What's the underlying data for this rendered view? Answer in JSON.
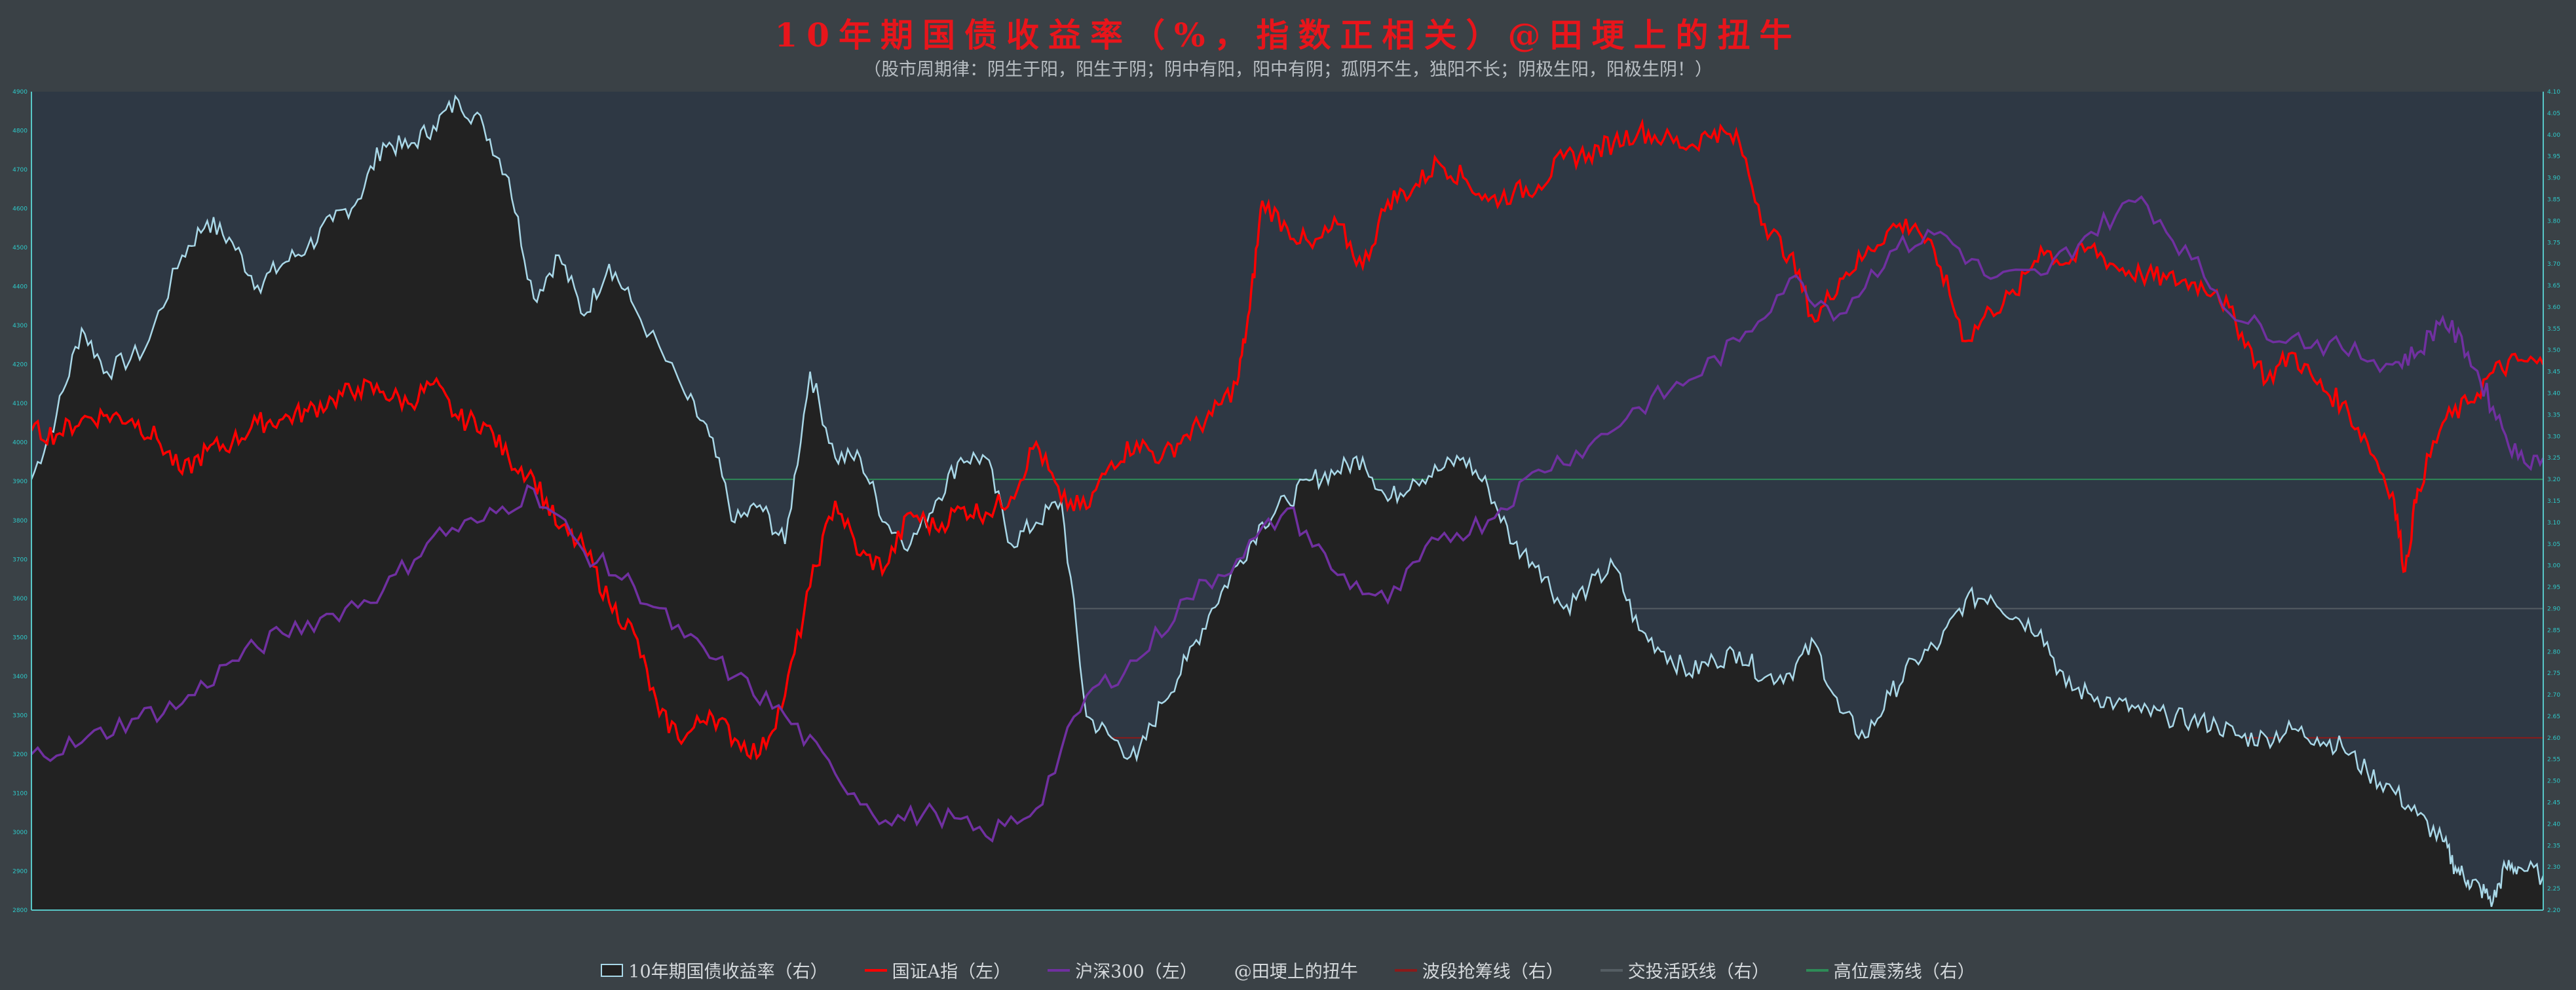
{
  "title": "10年期国债收益率（%，指数正相关）@田埂上的扭牛",
  "subtitle": "（股市周期律：阴生于阳，阳生于阴；阴中有阳，阳中有阴；孤阴不生，独阳不长；阴极生阳，阳极生阴！）",
  "colors": {
    "background": "#3a4146",
    "plot_background": "#2e3844",
    "area_fill": "#222222",
    "bond_line": "#a9d8e8",
    "index_a": "#ff0000",
    "hs300": "#7030a0",
    "title": "#e8151b",
    "tick_text": "#2ec9c9",
    "band_line": "#8b1a1a",
    "active_line": "#555d63",
    "high_line": "#2e8b57"
  },
  "legend": [
    {
      "label": "10年期国债收益率（右）",
      "style": "box",
      "color": "#a9d8e8"
    },
    {
      "label": "国证A指（左）",
      "style": "line",
      "color": "#ff0000"
    },
    {
      "label": "沪深300（左）",
      "style": "line",
      "color": "#7030a0"
    },
    {
      "label": "@田埂上的扭牛",
      "style": "none",
      "color": ""
    },
    {
      "label": "波段抢筹线（右）",
      "style": "line",
      "color": "#8b1a1a"
    },
    {
      "label": "交投活跃线（右）",
      "style": "line",
      "color": "#555d63"
    },
    {
      "label": "高位震荡线（右）",
      "style": "line",
      "color": "#2e8b57"
    }
  ],
  "chart_data": {
    "type": "line",
    "title": "10年期国债收益率（%，指数正相关）@田埂上的扭牛",
    "subtitle": "（股市周期律：阴生于阳，阳生于阴；阴中有阳，阳中有阴；孤阴不生，独阳不长；阴极生阳，阳极生阴！）",
    "x_range": [
      0,
      1
    ],
    "left_axis": {
      "ylim": [
        2800,
        4900
      ]
    },
    "right_axis": {
      "ylim": [
        2.2,
        4.1
      ]
    },
    "reference_lines": [
      {
        "name": "波段抢筹线（右）",
        "axis": "right",
        "value": 2.6
      },
      {
        "name": "交投活跃线（右）",
        "axis": "right",
        "value": 2.9
      },
      {
        "name": "高位震荡线（右）",
        "axis": "right",
        "value": 3.2
      }
    ],
    "series": [
      {
        "name": "10年期国债收益率（右）",
        "axis": "right",
        "style": "area",
        "points": [
          [
            0,
            3.2
          ],
          [
            0.01,
            3.35
          ],
          [
            0.02,
            3.55
          ],
          [
            0.03,
            3.45
          ],
          [
            0.045,
            3.5
          ],
          [
            0.06,
            3.72
          ],
          [
            0.07,
            3.8
          ],
          [
            0.08,
            3.75
          ],
          [
            0.09,
            3.65
          ],
          [
            0.1,
            3.7
          ],
          [
            0.11,
            3.74
          ],
          [
            0.12,
            3.8
          ],
          [
            0.13,
            3.85
          ],
          [
            0.14,
            3.98
          ],
          [
            0.15,
            3.97
          ],
          [
            0.16,
            4.02
          ],
          [
            0.17,
            4.08
          ],
          [
            0.18,
            4.02
          ],
          [
            0.19,
            3.9
          ],
          [
            0.2,
            3.62
          ],
          [
            0.21,
            3.72
          ],
          [
            0.22,
            3.58
          ],
          [
            0.23,
            3.7
          ],
          [
            0.24,
            3.6
          ],
          [
            0.26,
            3.4
          ],
          [
            0.27,
            3.3
          ],
          [
            0.28,
            3.1
          ],
          [
            0.29,
            3.14
          ],
          [
            0.3,
            3.05
          ],
          [
            0.31,
            3.45
          ],
          [
            0.32,
            3.25
          ],
          [
            0.33,
            3.25
          ],
          [
            0.34,
            3.1
          ],
          [
            0.35,
            3.05
          ],
          [
            0.36,
            3.15
          ],
          [
            0.37,
            3.25
          ],
          [
            0.38,
            3.25
          ],
          [
            0.39,
            3.05
          ],
          [
            0.4,
            3.1
          ],
          [
            0.41,
            3.15
          ],
          [
            0.42,
            2.65
          ],
          [
            0.43,
            2.6
          ],
          [
            0.44,
            2.55
          ],
          [
            0.45,
            2.68
          ],
          [
            0.46,
            2.78
          ],
          [
            0.47,
            2.9
          ],
          [
            0.48,
            3.0
          ],
          [
            0.49,
            3.1
          ],
          [
            0.5,
            3.15
          ],
          [
            0.51,
            3.2
          ],
          [
            0.52,
            3.22
          ],
          [
            0.53,
            3.25
          ],
          [
            0.54,
            3.15
          ],
          [
            0.55,
            3.2
          ],
          [
            0.56,
            3.22
          ],
          [
            0.57,
            3.25
          ],
          [
            0.58,
            3.18
          ],
          [
            0.59,
            3.05
          ],
          [
            0.6,
            3.0
          ],
          [
            0.61,
            2.9
          ],
          [
            0.62,
            2.95
          ],
          [
            0.63,
            3.0
          ],
          [
            0.64,
            2.85
          ],
          [
            0.65,
            2.8
          ],
          [
            0.66,
            2.75
          ],
          [
            0.67,
            2.78
          ],
          [
            0.68,
            2.8
          ],
          [
            0.69,
            2.74
          ],
          [
            0.7,
            2.75
          ],
          [
            0.71,
            2.82
          ],
          [
            0.72,
            2.66
          ],
          [
            0.73,
            2.6
          ],
          [
            0.74,
            2.7
          ],
          [
            0.75,
            2.78
          ],
          [
            0.76,
            2.82
          ],
          [
            0.77,
            2.92
          ],
          [
            0.78,
            2.93
          ],
          [
            0.79,
            2.88
          ],
          [
            0.8,
            2.85
          ],
          [
            0.81,
            2.72
          ],
          [
            0.82,
            2.7
          ],
          [
            0.83,
            2.68
          ],
          [
            0.84,
            2.66
          ],
          [
            0.85,
            2.65
          ],
          [
            0.86,
            2.64
          ],
          [
            0.87,
            2.63
          ],
          [
            0.88,
            2.6
          ],
          [
            0.89,
            2.6
          ],
          [
            0.9,
            2.62
          ],
          [
            0.91,
            2.6
          ],
          [
            0.92,
            2.58
          ],
          [
            0.93,
            2.52
          ],
          [
            0.94,
            2.48
          ],
          [
            0.95,
            2.42
          ],
          [
            0.96,
            2.36
          ],
          [
            0.965,
            2.3
          ],
          [
            0.97,
            2.27
          ],
          [
            0.975,
            2.25
          ],
          [
            0.98,
            2.22
          ],
          [
            0.985,
            2.3
          ],
          [
            0.99,
            2.3
          ],
          [
            1,
            2.28
          ]
        ]
      },
      {
        "name": "国证A指（左）",
        "axis": "left",
        "style": "line",
        "points": [
          [
            0,
            4030
          ],
          [
            0.01,
            4020
          ],
          [
            0.02,
            4060
          ],
          [
            0.03,
            4070
          ],
          [
            0.04,
            4060
          ],
          [
            0.05,
            4010
          ],
          [
            0.06,
            3920
          ],
          [
            0.07,
            3980
          ],
          [
            0.08,
            4000
          ],
          [
            0.09,
            4050
          ],
          [
            0.1,
            4060
          ],
          [
            0.11,
            4080
          ],
          [
            0.12,
            4110
          ],
          [
            0.13,
            4140
          ],
          [
            0.14,
            4130
          ],
          [
            0.15,
            4100
          ],
          [
            0.16,
            4150
          ],
          [
            0.17,
            4060
          ],
          [
            0.18,
            4050
          ],
          [
            0.19,
            3960
          ],
          [
            0.2,
            3910
          ],
          [
            0.21,
            3780
          ],
          [
            0.22,
            3730
          ],
          [
            0.23,
            3590
          ],
          [
            0.24,
            3510
          ],
          [
            0.25,
            3300
          ],
          [
            0.26,
            3240
          ],
          [
            0.27,
            3310
          ],
          [
            0.28,
            3240
          ],
          [
            0.29,
            3200
          ],
          [
            0.3,
            3350
          ],
          [
            0.31,
            3630
          ],
          [
            0.32,
            3850
          ],
          [
            0.33,
            3710
          ],
          [
            0.34,
            3680
          ],
          [
            0.35,
            3820
          ],
          [
            0.36,
            3780
          ],
          [
            0.37,
            3830
          ],
          [
            0.38,
            3820
          ],
          [
            0.39,
            3860
          ],
          [
            0.4,
            4000
          ],
          [
            0.41,
            3850
          ],
          [
            0.42,
            3830
          ],
          [
            0.43,
            3950
          ],
          [
            0.44,
            4000
          ],
          [
            0.45,
            3960
          ],
          [
            0.46,
            4020
          ],
          [
            0.47,
            4070
          ],
          [
            0.48,
            4150
          ],
          [
            0.485,
            4340
          ],
          [
            0.49,
            4620
          ],
          [
            0.5,
            4550
          ],
          [
            0.51,
            4500
          ],
          [
            0.52,
            4560
          ],
          [
            0.53,
            4450
          ],
          [
            0.54,
            4620
          ],
          [
            0.55,
            4650
          ],
          [
            0.56,
            4720
          ],
          [
            0.57,
            4680
          ],
          [
            0.58,
            4620
          ],
          [
            0.59,
            4640
          ],
          [
            0.6,
            4660
          ],
          [
            0.61,
            4730
          ],
          [
            0.62,
            4740
          ],
          [
            0.63,
            4770
          ],
          [
            0.64,
            4800
          ],
          [
            0.65,
            4780
          ],
          [
            0.66,
            4760
          ],
          [
            0.67,
            4800
          ],
          [
            0.68,
            4770
          ],
          [
            0.69,
            4560
          ],
          [
            0.7,
            4480
          ],
          [
            0.71,
            4310
          ],
          [
            0.72,
            4420
          ],
          [
            0.73,
            4480
          ],
          [
            0.74,
            4550
          ],
          [
            0.75,
            4560
          ],
          [
            0.76,
            4450
          ],
          [
            0.77,
            4260
          ],
          [
            0.78,
            4340
          ],
          [
            0.79,
            4380
          ],
          [
            0.8,
            4500
          ],
          [
            0.81,
            4460
          ],
          [
            0.82,
            4500
          ],
          [
            0.83,
            4450
          ],
          [
            0.84,
            4430
          ],
          [
            0.85,
            4420
          ],
          [
            0.86,
            4410
          ],
          [
            0.87,
            4390
          ],
          [
            0.88,
            4280
          ],
          [
            0.89,
            4160
          ],
          [
            0.9,
            4230
          ],
          [
            0.91,
            4150
          ],
          [
            0.92,
            4100
          ],
          [
            0.93,
            4000
          ],
          [
            0.94,
            3870
          ],
          [
            0.945,
            3670
          ],
          [
            0.95,
            3880
          ],
          [
            0.96,
            4050
          ],
          [
            0.97,
            4100
          ],
          [
            0.98,
            4180
          ],
          [
            0.99,
            4210
          ],
          [
            1,
            4200
          ]
        ]
      },
      {
        "name": "沪深300（左）",
        "axis": "left",
        "style": "line",
        "points": [
          [
            0,
            3200
          ],
          [
            0.02,
            3230
          ],
          [
            0.04,
            3290
          ],
          [
            0.06,
            3330
          ],
          [
            0.08,
            3440
          ],
          [
            0.1,
            3510
          ],
          [
            0.12,
            3560
          ],
          [
            0.14,
            3620
          ],
          [
            0.16,
            3760
          ],
          [
            0.18,
            3800
          ],
          [
            0.2,
            3880
          ],
          [
            0.22,
            3720
          ],
          [
            0.24,
            3630
          ],
          [
            0.26,
            3500
          ],
          [
            0.28,
            3400
          ],
          [
            0.3,
            3300
          ],
          [
            0.32,
            3150
          ],
          [
            0.34,
            3030
          ],
          [
            0.36,
            3050
          ],
          [
            0.38,
            2990
          ],
          [
            0.4,
            3060
          ],
          [
            0.42,
            3350
          ],
          [
            0.44,
            3440
          ],
          [
            0.46,
            3600
          ],
          [
            0.48,
            3700
          ],
          [
            0.5,
            3830
          ],
          [
            0.52,
            3660
          ],
          [
            0.54,
            3590
          ],
          [
            0.56,
            3750
          ],
          [
            0.58,
            3800
          ],
          [
            0.6,
            3930
          ],
          [
            0.62,
            3990
          ],
          [
            0.64,
            4090
          ],
          [
            0.66,
            4160
          ],
          [
            0.68,
            4260
          ],
          [
            0.7,
            4420
          ],
          [
            0.72,
            4330
          ],
          [
            0.74,
            4490
          ],
          [
            0.76,
            4540
          ],
          [
            0.78,
            4420
          ],
          [
            0.8,
            4430
          ],
          [
            0.82,
            4540
          ],
          [
            0.84,
            4630
          ],
          [
            0.86,
            4470
          ],
          [
            0.88,
            4310
          ],
          [
            0.9,
            4270
          ],
          [
            0.92,
            4240
          ],
          [
            0.94,
            4200
          ],
          [
            0.95,
            4230
          ],
          [
            0.96,
            4320
          ],
          [
            0.97,
            4230
          ],
          [
            0.98,
            4090
          ],
          [
            0.99,
            3960
          ],
          [
            1,
            3960
          ]
        ]
      }
    ],
    "grid": false,
    "legend_position": "bottom"
  }
}
